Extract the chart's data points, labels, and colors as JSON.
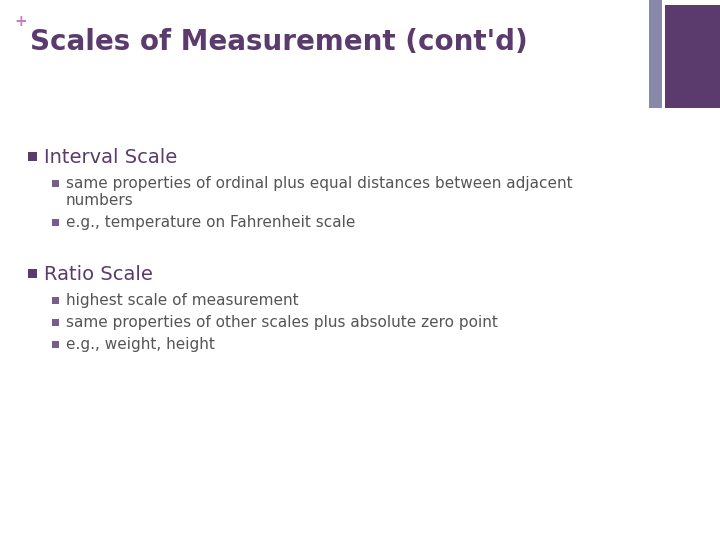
{
  "title": "Scales of Measurement (cont'd)",
  "plus_sign": "+",
  "title_color": "#5B3A6E",
  "plus_color": "#C080C0",
  "background_color": "#FFFFFF",
  "accent_bar_color1": "#5B3A6E",
  "accent_bar_color2": "#8888AA",
  "bullet_color": "#5B3A6E",
  "sub_bullet_color": "#7B5A8E",
  "text_color": "#555555",
  "sections": [
    {
      "header": "Interval Scale",
      "bullets": [
        "same properties of ordinal plus equal distances between adjacent\nnumbers",
        "e.g., temperature on Fahrenheit scale"
      ]
    },
    {
      "header": "Ratio Scale",
      "bullets": [
        "highest scale of measurement",
        "same properties of other scales plus absolute zero point",
        "e.g., weight, height"
      ]
    }
  ]
}
